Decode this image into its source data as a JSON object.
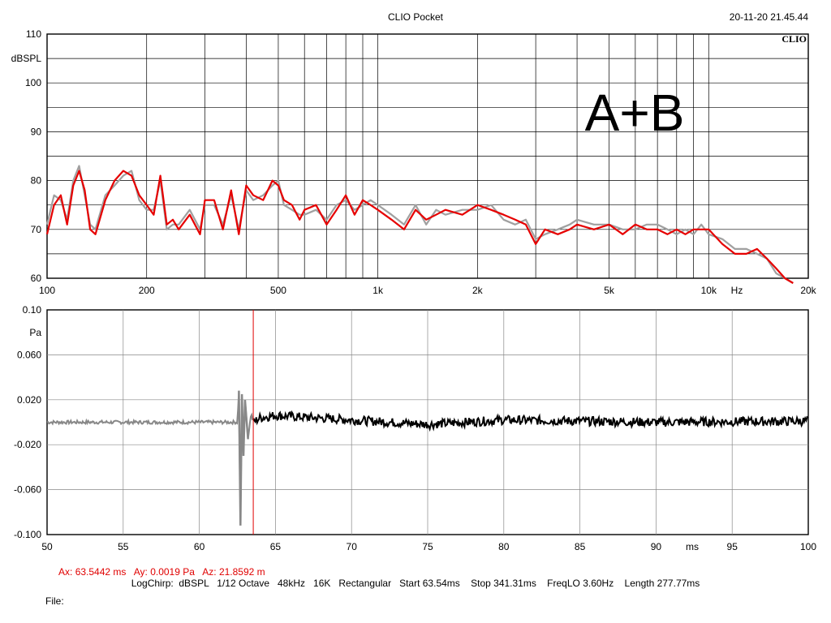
{
  "header": {
    "app_title": "CLIO Pocket",
    "timestamp": "20-11-20 21.45.44",
    "logo_text": "CLIO"
  },
  "chart_data": [
    {
      "type": "line",
      "xscale": "log",
      "xlim": [
        100,
        20000
      ],
      "ylim": [
        60,
        110
      ],
      "ylabel": "dBSPL",
      "xunit": "Hz",
      "yticks": [
        "110",
        "100",
        "90",
        "80",
        "70",
        "60"
      ],
      "xticks": [
        "100",
        "200",
        "500",
        "1k",
        "2k",
        "5k",
        "10k",
        "20k"
      ],
      "annotation": "A+B",
      "grid": true,
      "colors": {
        "series_red": "#e60000",
        "series_gray": "#a0a0a0"
      },
      "x": [
        100,
        105,
        110,
        115,
        120,
        125,
        130,
        135,
        140,
        150,
        160,
        170,
        180,
        190,
        200,
        210,
        220,
        230,
        240,
        250,
        270,
        290,
        300,
        320,
        340,
        360,
        380,
        400,
        420,
        450,
        480,
        500,
        520,
        550,
        580,
        600,
        650,
        700,
        750,
        800,
        850,
        900,
        950,
        1000,
        1100,
        1200,
        1300,
        1400,
        1500,
        1600,
        1800,
        2000,
        2200,
        2400,
        2600,
        2800,
        3000,
        3200,
        3500,
        3800,
        4000,
        4500,
        5000,
        5500,
        6000,
        6500,
        7000,
        7500,
        8000,
        8500,
        9000,
        9500,
        10000,
        11000,
        12000,
        13000,
        14000,
        15000,
        16000,
        17000,
        18000
      ],
      "series": [
        {
          "values": [
            69,
            75,
            77,
            71,
            79,
            82,
            78,
            70,
            69,
            76,
            80,
            82,
            81,
            77,
            75,
            73,
            81,
            71,
            72,
            70,
            73,
            69,
            76,
            76,
            70,
            78,
            69,
            79,
            77,
            76,
            80,
            79,
            76,
            75,
            72,
            74,
            75,
            71,
            74,
            77,
            73,
            76,
            75,
            74,
            72,
            70,
            74,
            72,
            73,
            74,
            73,
            75,
            74,
            73,
            72,
            71,
            67,
            70,
            69,
            70,
            71,
            70,
            71,
            69,
            71,
            70,
            70,
            69,
            70,
            69,
            70,
            70,
            70,
            67,
            65,
            65,
            66,
            64,
            62,
            60,
            59
          ]
        },
        {
          "values": [
            71,
            77,
            76,
            72,
            80,
            83,
            77,
            71,
            70,
            77,
            79,
            81,
            82,
            76,
            74,
            74,
            80,
            70,
            71,
            71,
            74,
            70,
            75,
            75,
            71,
            77,
            70,
            78,
            76,
            77,
            79,
            80,
            75,
            74,
            73,
            73,
            74,
            72,
            75,
            76,
            74,
            75,
            76,
            75,
            73,
            71,
            75,
            71,
            74,
            73,
            74,
            74,
            75,
            72,
            71,
            72,
            68,
            69,
            70,
            71,
            72,
            71,
            71,
            70,
            70,
            71,
            71,
            70,
            69,
            70,
            69,
            71,
            69,
            68,
            66,
            66,
            65,
            64,
            61,
            60,
            59
          ]
        }
      ]
    },
    {
      "type": "line",
      "xlim": [
        50,
        100
      ],
      "ylim": [
        -0.1,
        0.1
      ],
      "ylabel": "Pa",
      "xunit": "ms",
      "yticks": [
        "0.10",
        "0.060",
        "0.020",
        "-0.020",
        "-0.060",
        "-0.100"
      ],
      "xticks": [
        "50",
        "55",
        "60",
        "65",
        "70",
        "75",
        "80",
        "85",
        "90",
        "95",
        "100"
      ],
      "grid": true,
      "cursor_x": 63.5442,
      "colors": {
        "cursor": "#e00000",
        "pre_window": "#888888",
        "post_window": "#000000"
      },
      "pre_noise_amplitude": 0.0015,
      "post_noise_amplitude": 0.004,
      "x": [
        50,
        62.5,
        62.6,
        62.7,
        62.8,
        62.9,
        63.0,
        63.2,
        63.4,
        63.5442,
        64.0,
        65.0,
        70.0,
        75.0,
        80.0,
        90.0,
        100.0
      ],
      "values": [
        0.0,
        0.0,
        0.028,
        -0.092,
        0.025,
        -0.03,
        0.02,
        -0.015,
        0.008,
        0.0,
        0.004,
        0.006,
        0.002,
        -0.002,
        0.002,
        0.0,
        0.001
      ]
    }
  ],
  "cursor_readout": {
    "ax": "Ax: 63.5442 ms",
    "ay": "Ay: 0.0019 Pa",
    "az": "Az: 21.8592 m"
  },
  "footer": {
    "settings": "LogChirp:  dBSPL   1/12 Octave   48kHz   16K   Rectangular   Start 63.54ms    Stop 341.31ms    FreqLO 3.60Hz    Length 277.77ms",
    "file_label": "File:"
  }
}
